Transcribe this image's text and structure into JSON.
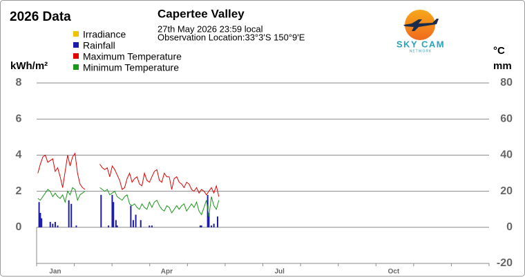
{
  "chart_data": {
    "type": "line",
    "title": "2026 Data",
    "subtitle": "Capertee Valley",
    "annotations": [
      "27th May 2026  23:59 local",
      "Observation Location:33°3'S 150°9'E"
    ],
    "logo": {
      "title": "SKY CAM",
      "subtitle": "NETWORK"
    },
    "y_label": "kWh/m²",
    "y2_labels": [
      "°C",
      "mm"
    ],
    "xlim": [
      0,
      365
    ],
    "xticks": [
      {
        "value": 15,
        "label": "Jan"
      },
      {
        "value": 105,
        "label": "Apr"
      },
      {
        "value": 196,
        "label": "Jul"
      },
      {
        "value": 288,
        "label": "Oct"
      }
    ],
    "ylim": [
      -2,
      8
    ],
    "yticks": [
      0,
      2,
      4,
      6,
      8
    ],
    "y2lim": [
      -20,
      80
    ],
    "y2ticks": [
      -20,
      0,
      20,
      40,
      60,
      80
    ],
    "grid": true,
    "series": [
      {
        "name": "Irradiance",
        "color": "#f2c200",
        "axis": "y",
        "kind": "line",
        "x": [],
        "values": []
      },
      {
        "name": "Rainfall",
        "color": "#1c1ca8",
        "axis": "y2",
        "kind": "bar",
        "x": [
          2,
          3,
          4,
          11,
          13,
          15,
          17,
          26,
          28,
          32,
          52,
          58,
          61,
          62,
          64,
          65,
          76,
          78,
          80,
          84,
          91,
          93,
          132,
          133,
          138,
          139,
          141,
          143,
          146
        ],
        "values": [
          14,
          8,
          5,
          3,
          2,
          3,
          1,
          15,
          13,
          1,
          18,
          1,
          18,
          14,
          4,
          1,
          12,
          4,
          7,
          4,
          1,
          1,
          1,
          1,
          18,
          8,
          1,
          2,
          6
        ]
      },
      {
        "name": "Maximum Temperature",
        "color": "#e00000",
        "axis": "y2",
        "kind": "line",
        "x": [
          1,
          3,
          5,
          7,
          9,
          11,
          13,
          15,
          17,
          19,
          21,
          23,
          25,
          27,
          29,
          31,
          33,
          35,
          37,
          39,
          41,
          43,
          45,
          47,
          49,
          51,
          53,
          55,
          57,
          59,
          61,
          63,
          65,
          67,
          69,
          71,
          73,
          75,
          77,
          79,
          81,
          83,
          85,
          87,
          89,
          91,
          93,
          95,
          97,
          99,
          101,
          103,
          105,
          107,
          109,
          111,
          113,
          115,
          117,
          119,
          121,
          123,
          125,
          127,
          129,
          131,
          133,
          135,
          137,
          139,
          141,
          143,
          145,
          147
        ],
        "values": [
          30,
          35,
          39,
          40,
          36,
          37,
          38,
          31,
          33,
          28,
          22,
          31,
          40,
          34,
          39,
          41,
          30,
          24,
          22,
          21,
          null,
          null,
          null,
          null,
          null,
          35,
          33,
          32,
          33,
          28,
          34,
          32,
          29,
          26,
          21,
          22,
          27,
          30,
          25,
          27,
          28,
          24,
          23,
          30,
          26,
          25,
          28,
          31,
          32,
          26,
          25,
          30,
          28,
          28,
          21,
          27,
          28,
          25,
          24,
          22,
          25,
          24,
          21,
          20,
          22,
          19,
          21,
          20,
          18,
          20,
          22,
          19,
          23,
          17
        ]
      },
      {
        "name": "Minimum Temperature",
        "color": "#1a961a",
        "axis": "y2",
        "kind": "line",
        "x": [
          1,
          3,
          5,
          7,
          9,
          11,
          13,
          15,
          17,
          19,
          21,
          23,
          25,
          27,
          29,
          31,
          33,
          35,
          37,
          39,
          41,
          43,
          45,
          47,
          49,
          51,
          53,
          55,
          57,
          59,
          61,
          63,
          65,
          67,
          69,
          71,
          73,
          75,
          77,
          79,
          81,
          83,
          85,
          87,
          89,
          91,
          93,
          95,
          97,
          99,
          101,
          103,
          105,
          107,
          109,
          111,
          113,
          115,
          117,
          119,
          121,
          123,
          125,
          127,
          129,
          131,
          133,
          135,
          137,
          139,
          141,
          143,
          145,
          147
        ],
        "values": [
          16,
          15,
          17,
          19,
          21,
          20,
          17,
          19,
          17,
          16,
          18,
          14,
          20,
          18,
          22,
          21,
          15,
          18,
          19,
          20,
          null,
          null,
          null,
          null,
          null,
          22,
          21,
          20,
          21,
          18,
          19,
          20,
          17,
          16,
          15,
          17,
          18,
          13,
          12,
          13,
          11,
          10,
          13,
          11,
          10,
          14,
          11,
          14,
          15,
          12,
          10,
          9,
          12,
          11,
          8,
          10,
          12,
          10,
          12,
          13,
          9,
          11,
          13,
          11,
          14,
          9,
          7,
          11,
          15,
          6,
          17,
          12,
          10,
          15
        ]
      }
    ]
  }
}
